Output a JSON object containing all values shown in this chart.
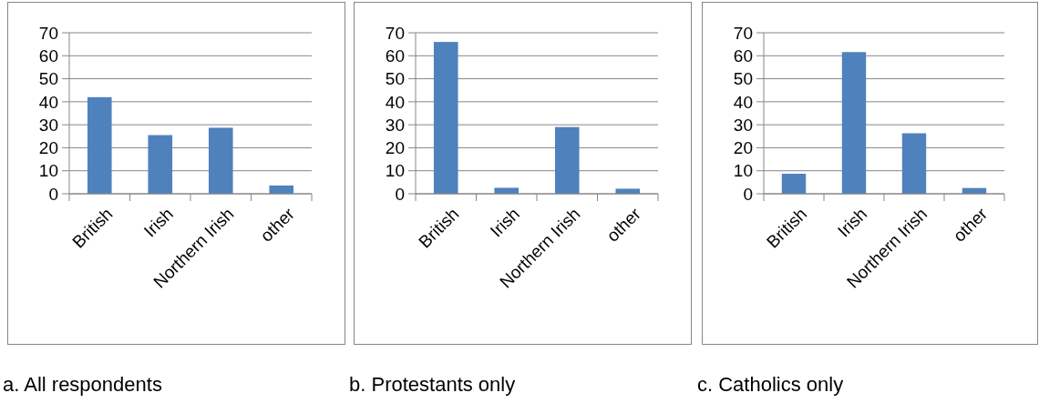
{
  "chart_data": [
    {
      "type": "bar",
      "title": "a. All respondents",
      "categories": [
        "British",
        "Irish",
        "Northern Irish",
        "other"
      ],
      "values": [
        42,
        25.5,
        28.7,
        3.6
      ],
      "color": "#4f81bd",
      "ylim": [
        0,
        70
      ],
      "yticks": [
        0,
        10,
        20,
        30,
        40,
        50,
        60,
        70
      ],
      "grid": "y"
    },
    {
      "type": "bar",
      "title": "b. Protestants only",
      "categories": [
        "British",
        "Irish",
        "Northern Irish",
        "other"
      ],
      "values": [
        66,
        2.6,
        29,
        2.2
      ],
      "color": "#4f81bd",
      "ylim": [
        0,
        70
      ],
      "yticks": [
        0,
        10,
        20,
        30,
        40,
        50,
        60,
        70
      ],
      "grid": "y"
    },
    {
      "type": "bar",
      "title": "c. Catholics only",
      "categories": [
        "British",
        "Irish",
        "Northern Irish",
        "other"
      ],
      "values": [
        8.7,
        61.6,
        26.3,
        2.5
      ],
      "color": "#4f81bd",
      "ylim": [
        0,
        70
      ],
      "yticks": [
        0,
        10,
        20,
        30,
        40,
        50,
        60,
        70
      ],
      "grid": "y"
    }
  ]
}
